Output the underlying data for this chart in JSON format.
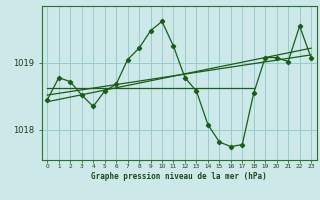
{
  "title": "Graphe pression niveau de la mer (hPa)",
  "background_color": "#cce8e8",
  "plot_bg_color": "#cce8e8",
  "grid_color": "#99cccc",
  "line_color": "#1a5c1a",
  "ylim": [
    1017.55,
    1019.85
  ],
  "xlim": [
    -0.5,
    23.5
  ],
  "yticks": [
    1018,
    1019
  ],
  "xticks": [
    0,
    1,
    2,
    3,
    4,
    5,
    6,
    7,
    8,
    9,
    10,
    11,
    12,
    13,
    14,
    15,
    16,
    17,
    18,
    19,
    20,
    21,
    22,
    23
  ],
  "series1_x": [
    0,
    1,
    2,
    3,
    4,
    5,
    6,
    7,
    8,
    9,
    10,
    11,
    12,
    13,
    14,
    15,
    16,
    17,
    18,
    19,
    20,
    21,
    22,
    23
  ],
  "series1_y": [
    1018.45,
    1018.78,
    1018.72,
    1018.52,
    1018.35,
    1018.58,
    1018.68,
    1019.05,
    1019.22,
    1019.48,
    1019.62,
    1019.25,
    1018.78,
    1018.58,
    1018.08,
    1017.82,
    1017.75,
    1017.78,
    1018.55,
    1019.08,
    1019.08,
    1019.02,
    1019.55,
    1019.08
  ],
  "trend1_x": [
    0,
    18
  ],
  "trend1_y": [
    1018.62,
    1018.62
  ],
  "trend2_x": [
    0,
    23
  ],
  "trend2_y": [
    1018.52,
    1019.12
  ],
  "trend3_x": [
    0,
    23
  ],
  "trend3_y": [
    1018.42,
    1019.22
  ]
}
